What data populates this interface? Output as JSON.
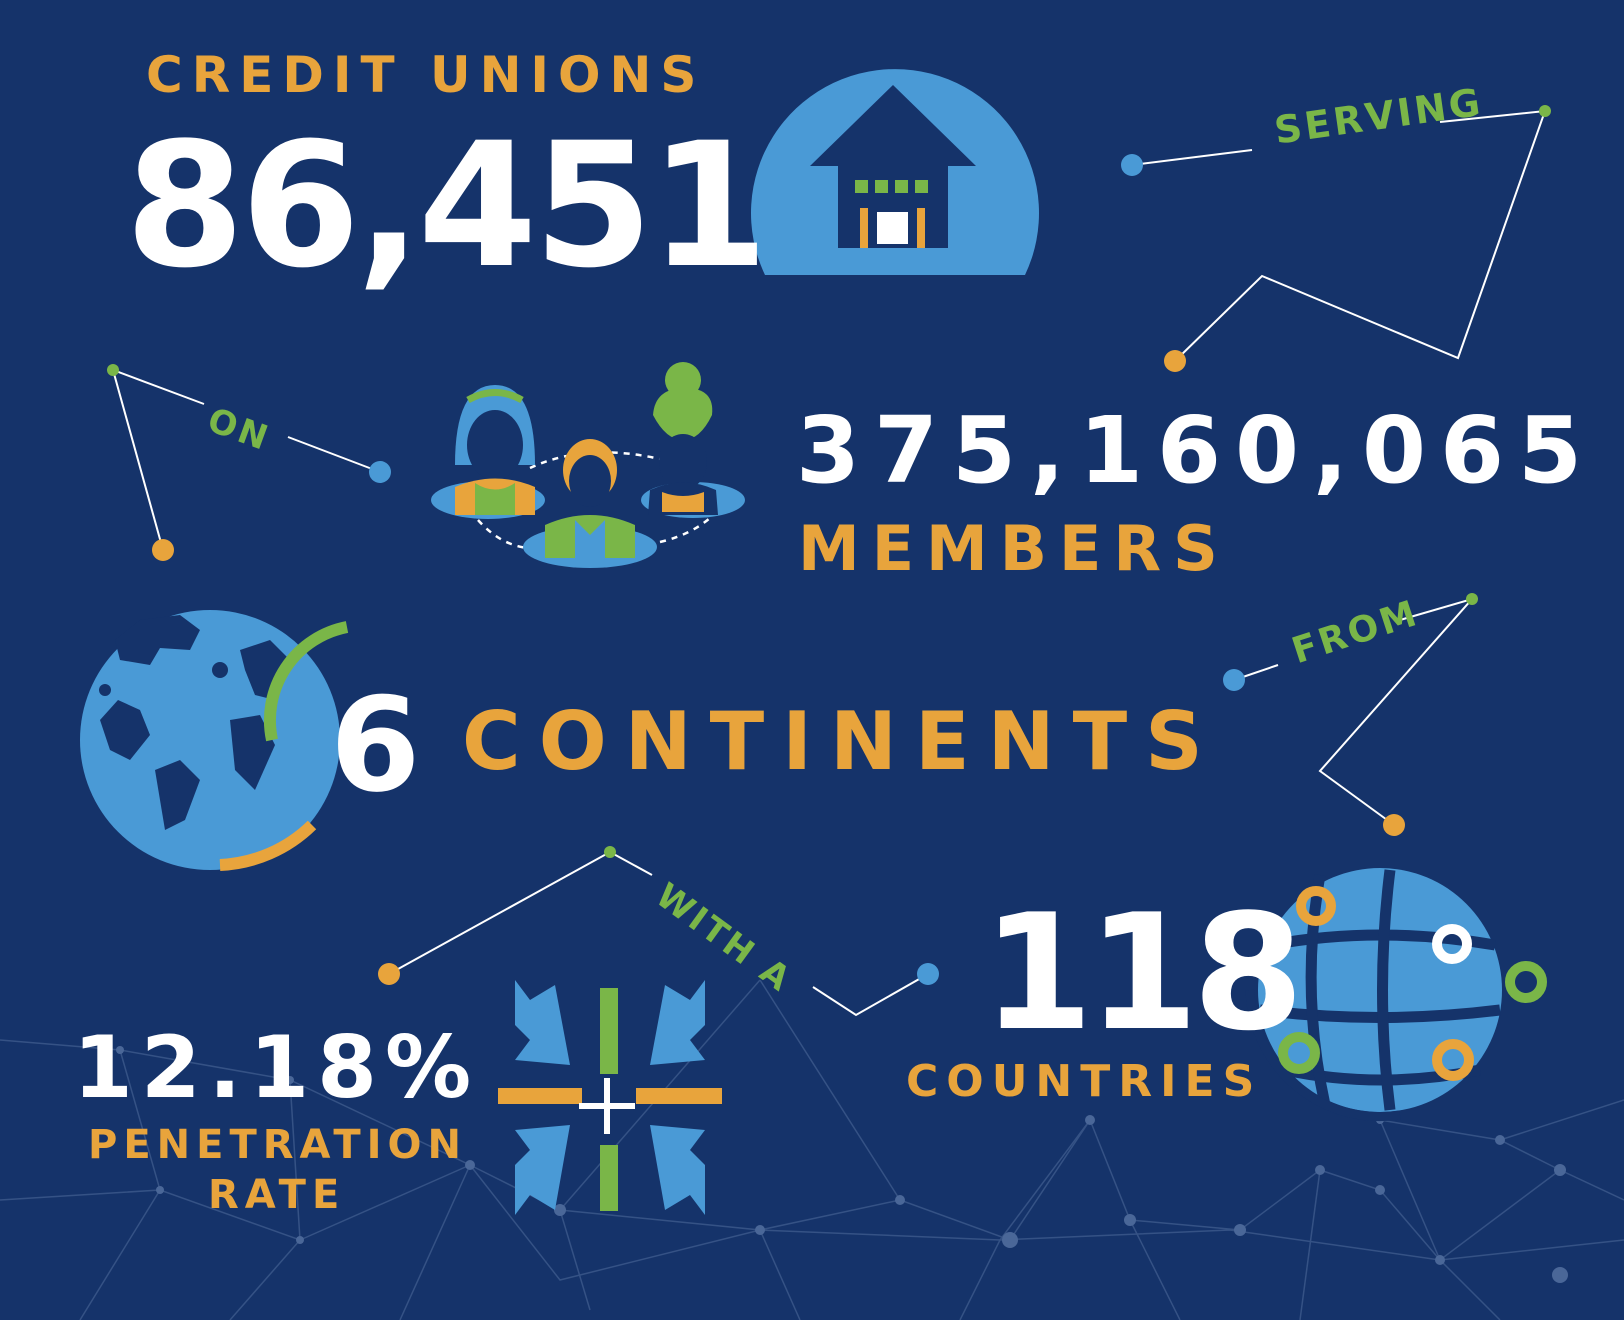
{
  "colors": {
    "background": "#15336a",
    "accent_orange": "#e8a43c",
    "accent_blue": "#4a9ad6",
    "accent_green": "#7ab648",
    "text_white": "#ffffff"
  },
  "credit_unions": {
    "label": "CREDIT UNIONS",
    "value": "86,451",
    "icon": "house-icon"
  },
  "connector_serving": "SERVING",
  "members": {
    "value": "375,160,065",
    "label": "MEMBERS",
    "icon": "people-icon"
  },
  "connector_on": "ON",
  "continents": {
    "value": "6",
    "label": "CONTINENTS",
    "icon": "globe-icon"
  },
  "connector_from": "FROM",
  "countries": {
    "value": "118",
    "label": "COUNTRIES",
    "icon": "map-pins-globe-icon"
  },
  "connector_with_a": "WITH A",
  "penetration": {
    "value": "12.18%",
    "label_line1": "PENETRATION",
    "label_line2": "RATE",
    "icon": "focus-arrows-icon"
  }
}
